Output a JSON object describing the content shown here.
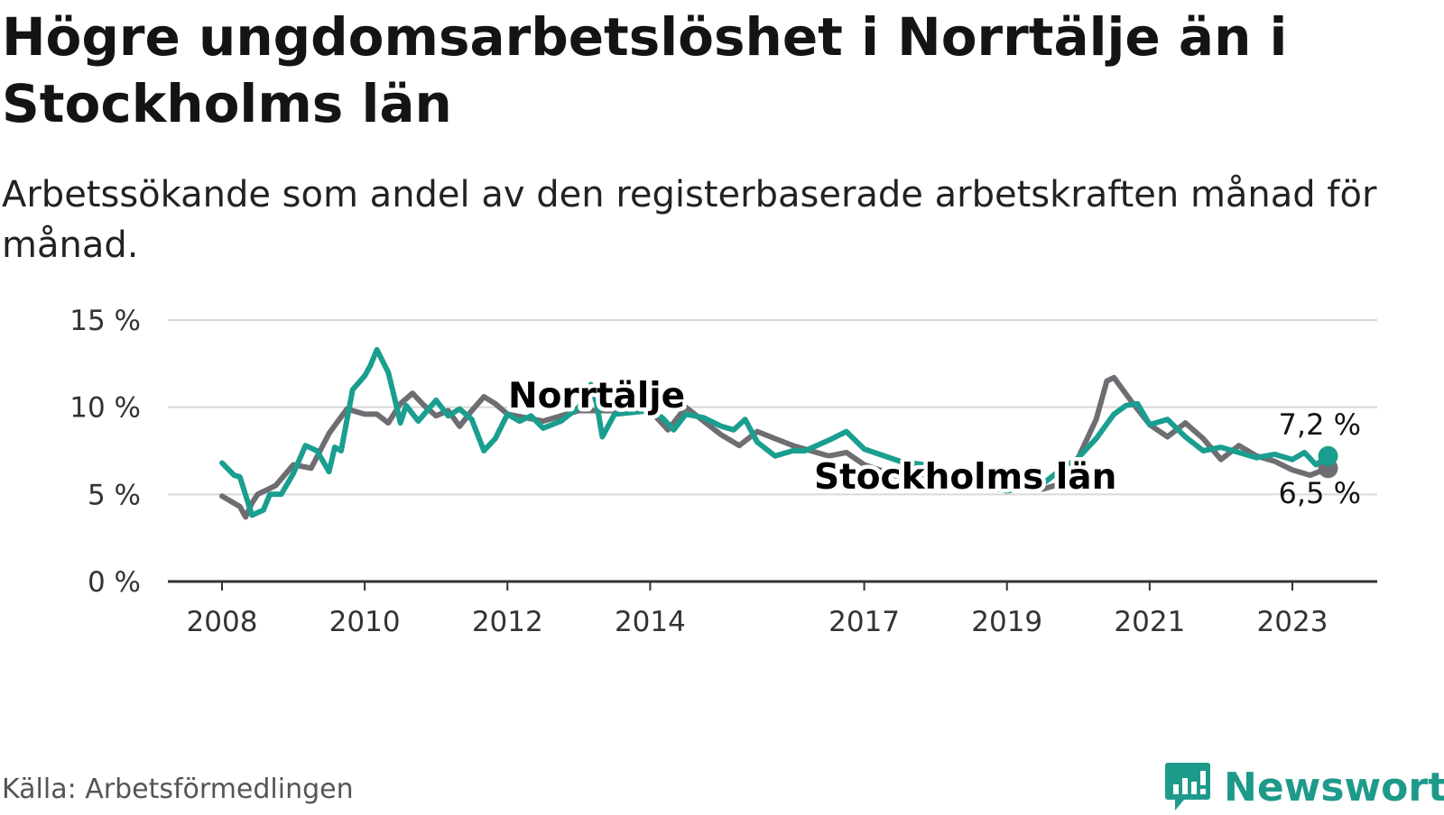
{
  "title": "Högre ungdomsarbetslöshet i Norrtälje än i Stockholms län",
  "subtitle": "Arbetssökande som andel av den registerbaserade arbetskraften månad för månad.",
  "source": "Källa: Arbetsförmedlingen",
  "brand": "Newsworthy",
  "colors": {
    "norrtalje": "#1a9e8f",
    "stockholm": "#6e6e72",
    "grid": "#d9d9d9",
    "axis": "#333333"
  },
  "chart_data": {
    "type": "line",
    "title": "Högre ungdomsarbetslöshet i Norrtälje än i Stockholms län",
    "xlabel": "",
    "ylabel": "",
    "ylim": [
      0,
      15
    ],
    "xlim": [
      2007.25,
      2024.1
    ],
    "yticks": [
      0,
      5,
      10,
      15
    ],
    "ytick_labels": [
      "0 %",
      "5 %",
      "10 %",
      "15 %"
    ],
    "xticks": [
      2008,
      2010,
      2012,
      2014,
      2017,
      2019,
      2021,
      2023
    ],
    "xtick_labels": [
      "2008",
      "2010",
      "2012",
      "2014",
      "2017",
      "2019",
      "2021",
      "2023"
    ],
    "series": [
      {
        "name": "Stockholms län",
        "label": "Stockholms län",
        "end_label": "6,5 %",
        "x": [
          2008.0,
          2008.25,
          2008.33,
          2008.42,
          2008.5,
          2008.75,
          2009.0,
          2009.25,
          2009.5,
          2009.75,
          2010.0,
          2010.17,
          2010.33,
          2010.5,
          2010.67,
          2010.83,
          2011.0,
          2011.17,
          2011.33,
          2011.5,
          2011.67,
          2011.83,
          2012.0,
          2012.5,
          2013.0,
          2013.5,
          2014.0,
          2014.25,
          2014.5,
          2015.0,
          2015.25,
          2015.5,
          2015.75,
          2016.0,
          2016.5,
          2016.75,
          2017.0,
          2017.5,
          2018.0,
          2018.5,
          2019.0,
          2019.5,
          2019.75,
          2020.0,
          2020.25,
          2020.4,
          2020.5,
          2020.75,
          2021.0,
          2021.25,
          2021.5,
          2021.75,
          2022.0,
          2022.25,
          2022.5,
          2022.75,
          2023.0,
          2023.25,
          2023.5
        ],
        "y": [
          4.9,
          4.3,
          3.7,
          4.5,
          5.0,
          5.5,
          6.7,
          6.5,
          8.5,
          9.9,
          9.6,
          9.6,
          9.1,
          10.2,
          10.8,
          10.1,
          9.5,
          9.8,
          8.9,
          9.8,
          10.6,
          10.2,
          9.6,
          9.2,
          9.8,
          9.8,
          9.8,
          8.7,
          10.0,
          8.4,
          7.8,
          8.6,
          8.2,
          7.8,
          7.2,
          7.4,
          6.7,
          6.0,
          6.2,
          5.6,
          5.5,
          5.3,
          5.6,
          7.1,
          9.3,
          11.5,
          11.7,
          10.3,
          9.0,
          8.3,
          9.1,
          8.2,
          7.0,
          7.8,
          7.2,
          6.9,
          6.4,
          6.1,
          6.5
        ]
      },
      {
        "name": "Norrtälje",
        "label": "Norrtälje",
        "end_label": "7,2 %",
        "x": [
          2008.0,
          2008.17,
          2008.25,
          2008.42,
          2008.58,
          2008.67,
          2008.83,
          2009.0,
          2009.17,
          2009.33,
          2009.5,
          2009.58,
          2009.67,
          2009.83,
          2010.0,
          2010.08,
          2010.17,
          2010.33,
          2010.42,
          2010.5,
          2010.58,
          2010.75,
          2011.0,
          2011.17,
          2011.33,
          2011.5,
          2011.67,
          2011.83,
          2012.0,
          2012.17,
          2012.33,
          2012.5,
          2012.75,
          2013.0,
          2013.17,
          2013.25,
          2013.33,
          2013.5,
          2014.0,
          2014.17,
          2014.33,
          2014.5,
          2014.75,
          2015.0,
          2015.17,
          2015.33,
          2015.5,
          2015.75,
          2016.0,
          2016.17,
          2016.5,
          2016.75,
          2017.0,
          2017.5,
          2018.0,
          2018.5,
          2019.0,
          2019.25,
          2019.5,
          2019.75,
          2020.0,
          2020.25,
          2020.5,
          2020.67,
          2020.83,
          2021.0,
          2021.25,
          2021.5,
          2021.75,
          2022.0,
          2022.25,
          2022.5,
          2022.75,
          2023.0,
          2023.17,
          2023.33,
          2023.5
        ],
        "y": [
          6.8,
          6.1,
          6.0,
          3.8,
          4.1,
          5.0,
          5.0,
          6.2,
          7.8,
          7.5,
          6.3,
          7.7,
          7.5,
          11.0,
          11.8,
          12.4,
          13.3,
          12.0,
          10.5,
          9.1,
          10.1,
          9.2,
          10.4,
          9.5,
          9.9,
          9.3,
          7.5,
          8.2,
          9.6,
          9.2,
          9.5,
          8.8,
          9.2,
          10.0,
          11.3,
          10.2,
          8.3,
          9.6,
          9.8,
          9.4,
          8.7,
          9.6,
          9.4,
          8.9,
          8.7,
          9.3,
          8.0,
          7.2,
          7.5,
          7.5,
          8.1,
          8.6,
          7.6,
          6.9,
          6.6,
          5.6,
          5.2,
          5.4,
          5.6,
          6.4,
          7.1,
          8.2,
          9.6,
          10.1,
          10.2,
          9.0,
          9.3,
          8.3,
          7.5,
          7.7,
          7.4,
          7.1,
          7.3,
          7.0,
          7.4,
          6.7,
          7.2
        ]
      }
    ]
  }
}
